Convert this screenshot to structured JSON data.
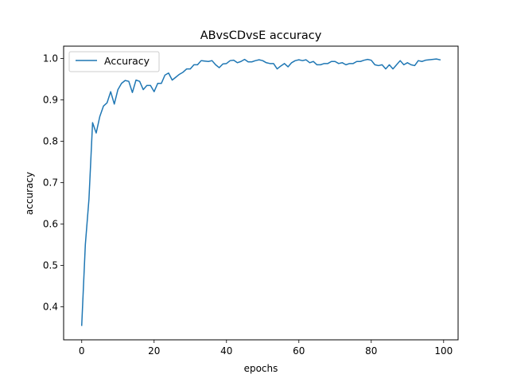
{
  "chart_data": {
    "type": "line",
    "title": "ABvsCDvsE accuracy",
    "xlabel": "epochs",
    "ylabel": "accuracy",
    "xlim": [
      -5,
      104
    ],
    "ylim": [
      0.32,
      1.03
    ],
    "xticks": [
      0,
      20,
      40,
      60,
      80,
      100
    ],
    "yticks": [
      0.4,
      0.5,
      0.6,
      0.7,
      0.8,
      0.9,
      1.0
    ],
    "xtick_labels": [
      "0",
      "20",
      "40",
      "60",
      "80",
      "100"
    ],
    "ytick_labels": [
      "0.4",
      "0.5",
      "0.6",
      "0.7",
      "0.8",
      "0.9",
      "1.0"
    ],
    "grid": false,
    "legend_position": "top-left",
    "series": [
      {
        "name": "Accuracy",
        "color": "#1f77b4",
        "x": [
          0,
          1,
          2,
          3,
          4,
          5,
          6,
          7,
          8,
          9,
          10,
          11,
          12,
          13,
          14,
          15,
          16,
          17,
          18,
          19,
          20,
          21,
          22,
          23,
          24,
          25,
          26,
          27,
          28,
          29,
          30,
          31,
          32,
          33,
          34,
          35,
          36,
          37,
          38,
          39,
          40,
          41,
          42,
          43,
          44,
          45,
          46,
          47,
          48,
          49,
          50,
          51,
          52,
          53,
          54,
          55,
          56,
          57,
          58,
          59,
          60,
          61,
          62,
          63,
          64,
          65,
          66,
          67,
          68,
          69,
          70,
          71,
          72,
          73,
          74,
          75,
          76,
          77,
          78,
          79,
          80,
          81,
          82,
          83,
          84,
          85,
          86,
          87,
          88,
          89,
          90,
          91,
          92,
          93,
          94,
          95,
          96,
          97,
          98,
          99
        ],
        "values": [
          0.355,
          0.55,
          0.66,
          0.845,
          0.82,
          0.86,
          0.885,
          0.893,
          0.92,
          0.89,
          0.925,
          0.94,
          0.947,
          0.945,
          0.918,
          0.948,
          0.945,
          0.925,
          0.935,
          0.935,
          0.92,
          0.94,
          0.94,
          0.96,
          0.965,
          0.948,
          0.955,
          0.962,
          0.967,
          0.975,
          0.975,
          0.985,
          0.985,
          0.995,
          0.994,
          0.993,
          0.995,
          0.985,
          0.978,
          0.987,
          0.988,
          0.995,
          0.996,
          0.99,
          0.993,
          0.998,
          0.992,
          0.992,
          0.995,
          0.997,
          0.995,
          0.99,
          0.988,
          0.988,
          0.975,
          0.982,
          0.988,
          0.98,
          0.99,
          0.995,
          0.997,
          0.995,
          0.997,
          0.99,
          0.993,
          0.985,
          0.985,
          0.988,
          0.988,
          0.993,
          0.993,
          0.988,
          0.99,
          0.985,
          0.988,
          0.988,
          0.993,
          0.993,
          0.996,
          0.998,
          0.996,
          0.985,
          0.983,
          0.985,
          0.975,
          0.985,
          0.975,
          0.985,
          0.995,
          0.985,
          0.99,
          0.985,
          0.983,
          0.995,
          0.993,
          0.996,
          0.997,
          0.998,
          0.999,
          0.997
        ]
      }
    ]
  }
}
